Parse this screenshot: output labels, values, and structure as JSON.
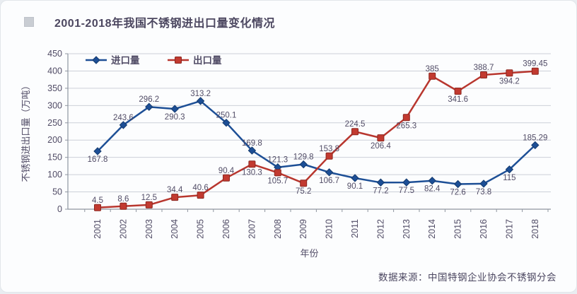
{
  "page": {
    "title": "2001-2018年我国不锈钢进出口量变化情况",
    "footer": "数据来源：中国特钢企业协会不锈钢分会"
  },
  "colors": {
    "import_line": "#1d4f96",
    "import_marker_stroke": "#143a6e",
    "export_line": "#b8362e",
    "export_marker_fill": "#c23a30",
    "export_marker_stroke": "#8c261f",
    "grid": "#ccd0d8",
    "axis": "#8f96a0",
    "chart_text": "#514c66"
  },
  "chart_data": {
    "type": "line",
    "title": "2001-2018年我国不锈钢进出口量变化情况",
    "xlabel": "年份",
    "ylabel": "不锈钢进出口量（万吨）",
    "categories": [
      "2001",
      "2002",
      "2003",
      "2004",
      "2005",
      "2006",
      "2007",
      "2008",
      "2009",
      "2010",
      "2011",
      "2012",
      "2013",
      "2014",
      "2015",
      "2016",
      "2017",
      "2018"
    ],
    "ylim": [
      0,
      450
    ],
    "ytick_step": 50,
    "grid": true,
    "legend_position": "top-left",
    "series": [
      {
        "name": "进口量",
        "marker": "diamond",
        "color": "#1d4f96",
        "values": [
          167.8,
          243.6,
          296.2,
          290.3,
          313.2,
          250.1,
          169.8,
          121.3,
          129.8,
          106.7,
          90.1,
          77.2,
          77.5,
          82.4,
          72.6,
          73.8,
          115,
          185.29
        ],
        "labels": [
          "167.8",
          "243.6",
          "296.2",
          "290.3",
          "313.2",
          "250.1",
          "169.8",
          "121.3",
          "129.8",
          "106.7",
          "90.1",
          "77.2",
          "77.5",
          "82.4",
          "72.6",
          "73.8",
          "115",
          "185.29"
        ],
        "label_pos": [
          "below",
          "above",
          "above",
          "below",
          "above",
          "above",
          "above",
          "above",
          "above",
          "below",
          "below",
          "below",
          "below",
          "below",
          "below",
          "below",
          "below",
          "above"
        ]
      },
      {
        "name": "出口量",
        "marker": "square",
        "color": "#b8362e",
        "values": [
          4.5,
          8.6,
          12.5,
          34.4,
          40.6,
          90.4,
          130.3,
          105.7,
          75.2,
          153.8,
          224.5,
          206.4,
          265.3,
          385,
          341.6,
          388.7,
          394.2,
          399.45
        ],
        "labels": [
          "4.5",
          "8.6",
          "12.5",
          "34.4",
          "40.6",
          "90.4",
          "130.3",
          "105.7",
          "75.2",
          "153.8",
          "224.5",
          "206.4",
          "265.3",
          "385",
          "341.6",
          "388.7",
          "394.2",
          "399.45"
        ],
        "label_pos": [
          "above",
          "above",
          "above",
          "above",
          "above",
          "above",
          "below",
          "below",
          "below",
          "above",
          "above",
          "below",
          "below",
          "above",
          "below",
          "above",
          "below",
          "above"
        ]
      }
    ]
  }
}
